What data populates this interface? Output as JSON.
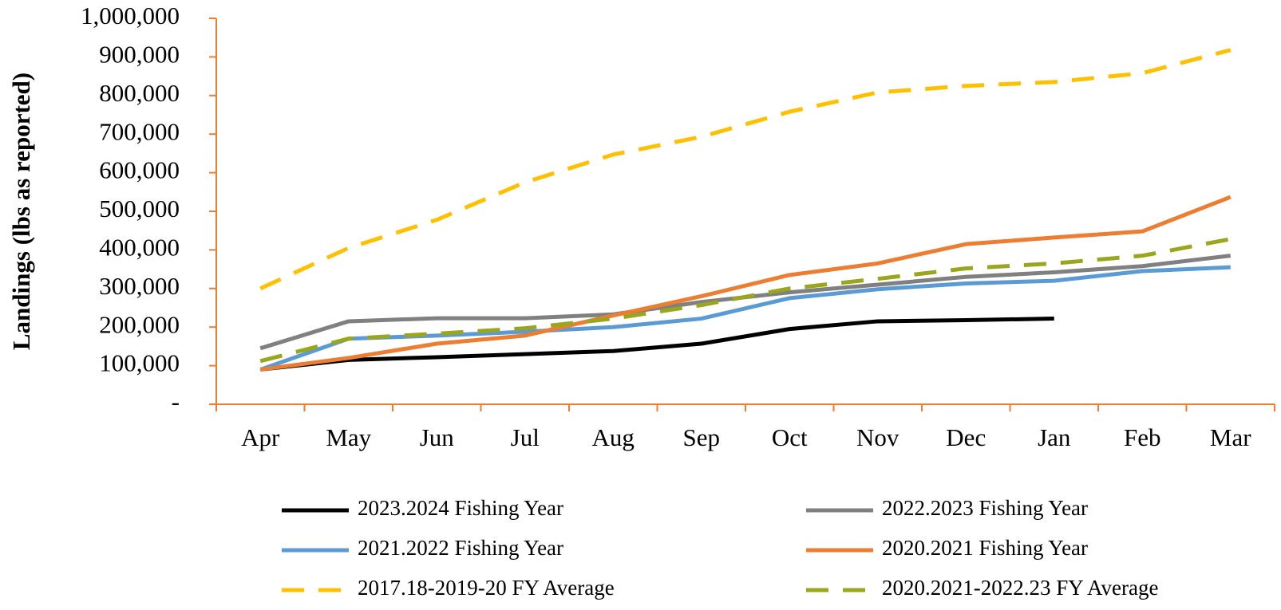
{
  "chart_data": {
    "type": "line",
    "y_label": "Landings (lbs as reported)",
    "categories": [
      "Apr",
      "May",
      "Jun",
      "Jul",
      "Aug",
      "Sep",
      "Oct",
      "Nov",
      "Dec",
      "Jan",
      "Feb",
      "Mar"
    ],
    "ylim": [
      0,
      1000000
    ],
    "yticks": [
      {
        "value": 0,
        "label": "-"
      },
      {
        "value": 100000,
        "label": "100,000"
      },
      {
        "value": 200000,
        "label": "200,000"
      },
      {
        "value": 300000,
        "label": "300,000"
      },
      {
        "value": 400000,
        "label": "400,000"
      },
      {
        "value": 500000,
        "label": "500,000"
      },
      {
        "value": 600000,
        "label": "600,000"
      },
      {
        "value": 700000,
        "label": "700,000"
      },
      {
        "value": 800000,
        "label": "800,000"
      },
      {
        "value": 900000,
        "label": "900,000"
      },
      {
        "value": 1000000,
        "label": "1,000,000"
      }
    ],
    "axis_color": "#ED7D31",
    "legend": "bottom",
    "series": [
      {
        "name": "2023.2024 Fishing Year",
        "color": "#000000",
        "dashed": false,
        "values": [
          90000,
          115000,
          122000,
          130000,
          138000,
          157000,
          195000,
          215000,
          218000,
          222000,
          null,
          null
        ]
      },
      {
        "name": "2022.2023 Fishing Year",
        "color": "#808080",
        "dashed": false,
        "values": [
          145000,
          215000,
          223000,
          223000,
          233000,
          265000,
          290000,
          310000,
          330000,
          342000,
          358000,
          385000
        ]
      },
      {
        "name": "2021.2022 Fishing Year",
        "color": "#5B9BD5",
        "dashed": false,
        "values": [
          90000,
          170000,
          178000,
          188000,
          200000,
          222000,
          275000,
          298000,
          313000,
          320000,
          345000,
          355000
        ]
      },
      {
        "name": "2020.2021 Fishing Year",
        "color": "#ED7D31",
        "dashed": false,
        "values": [
          90000,
          120000,
          157000,
          178000,
          230000,
          280000,
          335000,
          365000,
          415000,
          432000,
          448000,
          537000
        ]
      },
      {
        "name": "2017.18-2019-20 FY Average",
        "color": "#FFC000",
        "dashed": true,
        "values": [
          300000,
          405000,
          478000,
          575000,
          647000,
          693000,
          758000,
          808000,
          825000,
          835000,
          858000,
          918000
        ]
      },
      {
        "name": "2020.2021-2022.23 FY Average",
        "color": "#9AA61C",
        "dashed": true,
        "values": [
          112000,
          170000,
          183000,
          197000,
          222000,
          257000,
          300000,
          325000,
          352000,
          365000,
          385000,
          428000
        ]
      }
    ]
  }
}
